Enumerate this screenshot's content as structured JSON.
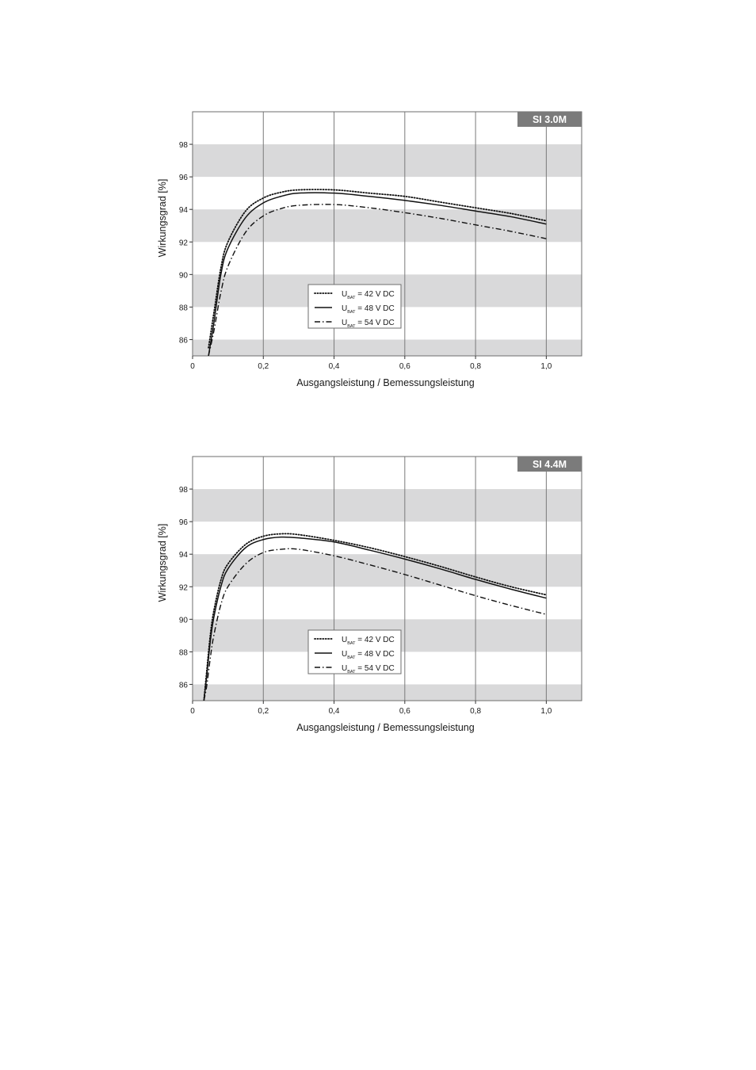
{
  "chart_data": [
    {
      "type": "line",
      "badge": "SI 3.0M",
      "xlabel": "Ausgangsleistung / Bemessungsleistung",
      "ylabel": "Wirkungsgrad [%]",
      "xlim": [
        0,
        1.1
      ],
      "ylim": [
        85,
        100
      ],
      "x_ticks": [
        "0",
        "0,2",
        "0,4",
        "0,6",
        "0,8",
        "1,0"
      ],
      "y_ticks": [
        "86",
        "88",
        "90",
        "92",
        "94",
        "96",
        "98"
      ],
      "grid": "vertical lines at x ticks, alternating horizontal grey bands",
      "legend": {
        "placement": "center"
      },
      "series": [
        {
          "name_main": "U",
          "name_sub": "BAT",
          "name_rest": " = 42 V DC",
          "style": "dotted",
          "x": [
            0.045,
            0.06,
            0.08,
            0.1,
            0.15,
            0.2,
            0.25,
            0.3,
            0.4,
            0.5,
            0.6,
            0.7,
            0.8,
            0.9,
            1.0
          ],
          "y": [
            85.5,
            87.6,
            90.4,
            92.0,
            93.9,
            94.7,
            95.05,
            95.2,
            95.2,
            95.0,
            94.8,
            94.45,
            94.1,
            93.75,
            93.3
          ]
        },
        {
          "name_main": "U",
          "name_sub": "BAT",
          "name_rest": " = 48 V DC",
          "style": "solid",
          "x": [
            0.045,
            0.06,
            0.08,
            0.1,
            0.15,
            0.2,
            0.25,
            0.3,
            0.4,
            0.5,
            0.6,
            0.7,
            0.8,
            0.9,
            1.0
          ],
          "y": [
            85.0,
            87.0,
            90.0,
            91.6,
            93.5,
            94.4,
            94.8,
            95.0,
            95.0,
            94.8,
            94.55,
            94.25,
            93.9,
            93.55,
            93.1
          ]
        },
        {
          "name_main": "U",
          "name_sub": "BAT",
          "name_rest": " = 54 V DC",
          "style": "dash-dot",
          "x": [
            0.045,
            0.06,
            0.08,
            0.1,
            0.15,
            0.2,
            0.25,
            0.3,
            0.4,
            0.5,
            0.6,
            0.7,
            0.8,
            0.9,
            1.0
          ],
          "y": [
            85.0,
            86.5,
            88.9,
            90.5,
            92.6,
            93.6,
            94.05,
            94.25,
            94.3,
            94.1,
            93.8,
            93.45,
            93.05,
            92.65,
            92.2
          ]
        }
      ]
    },
    {
      "type": "line",
      "badge": "SI 4.4M",
      "xlabel": "Ausgangsleistung / Bemessungsleistung",
      "ylabel": "Wirkungsgrad [%]",
      "xlim": [
        0,
        1.1
      ],
      "ylim": [
        85,
        100
      ],
      "x_ticks": [
        "0",
        "0,2",
        "0,4",
        "0,6",
        "0,8",
        "1,0"
      ],
      "y_ticks": [
        "86",
        "88",
        "90",
        "92",
        "94",
        "96",
        "98"
      ],
      "grid": "vertical lines at x ticks, alternating horizontal grey bands",
      "legend": {
        "placement": "center-bottom"
      },
      "series": [
        {
          "name_main": "U",
          "name_sub": "BAT",
          "name_rest": " = 42 V DC",
          "style": "dotted",
          "x": [
            0.032,
            0.04,
            0.05,
            0.06,
            0.08,
            0.1,
            0.15,
            0.2,
            0.25,
            0.3,
            0.4,
            0.5,
            0.6,
            0.7,
            0.8,
            0.9,
            1.0
          ],
          "y": [
            85.0,
            86.8,
            89.0,
            90.5,
            92.4,
            93.4,
            94.6,
            95.1,
            95.25,
            95.2,
            94.85,
            94.4,
            93.85,
            93.25,
            92.6,
            92.0,
            91.5
          ]
        },
        {
          "name_main": "U",
          "name_sub": "BAT",
          "name_rest": " = 48 V DC",
          "style": "solid",
          "x": [
            0.032,
            0.04,
            0.05,
            0.06,
            0.08,
            0.1,
            0.15,
            0.2,
            0.25,
            0.3,
            0.4,
            0.5,
            0.6,
            0.7,
            0.8,
            0.9,
            1.0
          ],
          "y": [
            85.0,
            86.5,
            88.6,
            90.1,
            92.0,
            93.1,
            94.4,
            94.9,
            95.05,
            95.0,
            94.75,
            94.25,
            93.7,
            93.1,
            92.45,
            91.85,
            91.3
          ]
        },
        {
          "name_main": "U",
          "name_sub": "BAT",
          "name_rest": " = 54 V DC",
          "style": "dash-dot",
          "x": [
            0.032,
            0.04,
            0.05,
            0.06,
            0.08,
            0.1,
            0.15,
            0.2,
            0.25,
            0.3,
            0.4,
            0.5,
            0.6,
            0.7,
            0.8,
            0.9,
            1.0
          ],
          "y": [
            85.0,
            85.9,
            87.6,
            89.0,
            90.9,
            92.0,
            93.4,
            94.1,
            94.3,
            94.3,
            93.9,
            93.35,
            92.75,
            92.1,
            91.45,
            90.85,
            90.3
          ]
        }
      ]
    }
  ]
}
